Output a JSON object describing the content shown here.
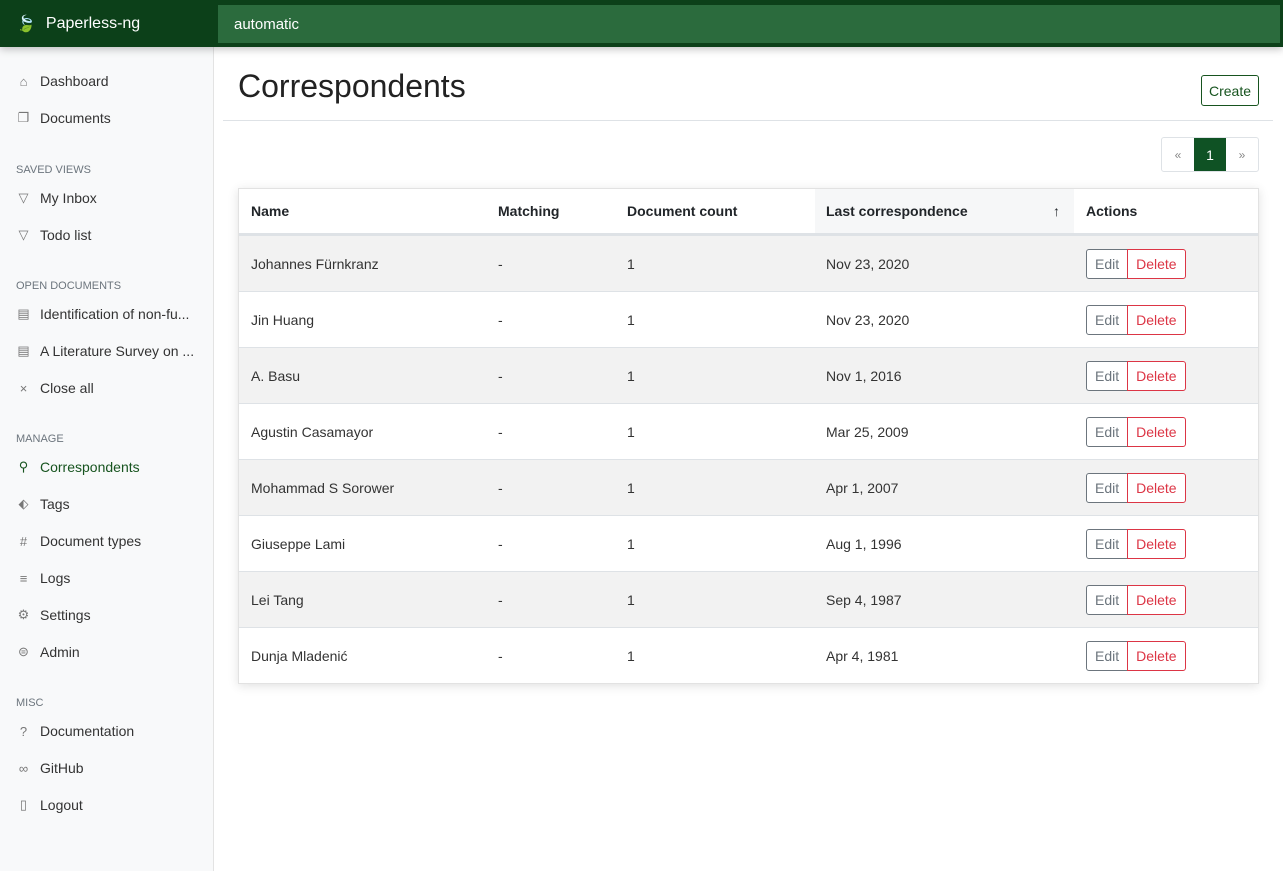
{
  "app": {
    "name": "Paperless-ng",
    "search_value": "automatic"
  },
  "sidebar": {
    "items": [
      {
        "label": "Dashboard",
        "icon": "house-icon"
      },
      {
        "label": "Documents",
        "icon": "files-icon"
      }
    ],
    "saved_views_header": "Saved views",
    "saved_views": [
      {
        "label": "My Inbox"
      },
      {
        "label": "Todo list"
      }
    ],
    "open_docs_header": "Open documents",
    "open_docs": [
      {
        "label": "Identification of non-fu..."
      },
      {
        "label": "A Literature Survey on ..."
      },
      {
        "label": "Close all"
      }
    ],
    "manage_header": "Manage",
    "manage": [
      {
        "label": "Correspondents"
      },
      {
        "label": "Tags"
      },
      {
        "label": "Document types"
      },
      {
        "label": "Logs"
      },
      {
        "label": "Settings"
      },
      {
        "label": "Admin"
      }
    ],
    "misc_header": "Misc",
    "misc": [
      {
        "label": "Documentation"
      },
      {
        "label": "GitHub"
      },
      {
        "label": "Logout"
      }
    ]
  },
  "page": {
    "title": "Correspondents",
    "create_label": "Create",
    "pagination": {
      "prev": "«",
      "current": "1",
      "next": "»"
    }
  },
  "table": {
    "headers": [
      "Name",
      "Matching",
      "Document count",
      "Last correspondence",
      "Actions"
    ],
    "sort_indicator": "↑",
    "edit_label": "Edit",
    "delete_label": "Delete",
    "rows": [
      [
        "Johannes Fürnkranz",
        "-",
        "1",
        "Nov 23, 2020"
      ],
      [
        "Jin Huang",
        "-",
        "1",
        "Nov 23, 2020"
      ],
      [
        "A. Basu",
        "-",
        "1",
        "Nov 1, 2016"
      ],
      [
        "Agustin Casamayor",
        "-",
        "1",
        "Mar 25, 2009"
      ],
      [
        "Mohammad S Sorower",
        "-",
        "1",
        "Apr 1, 2007"
      ],
      [
        "Giuseppe Lami",
        "-",
        "1",
        "Aug 1, 1996"
      ],
      [
        "Lei Tang",
        "-",
        "1",
        "Sep 4, 1987"
      ],
      [
        "Dunja Mladenić",
        "-",
        "1",
        "Apr 4, 1981"
      ]
    ]
  },
  "colors": {
    "brand": "#0c4019",
    "accent": "#17541f",
    "danger": "#dc3545"
  }
}
